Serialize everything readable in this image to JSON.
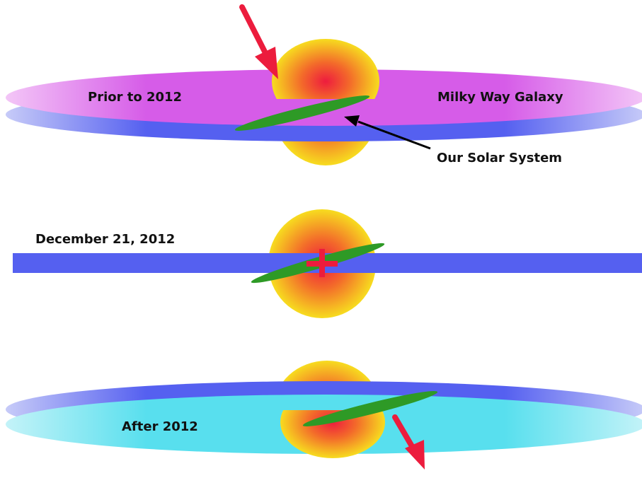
{
  "labels": {
    "prior": "Prior to 2012",
    "galaxy": "Milky Way Galaxy",
    "solar_system": "Our Solar System",
    "alignment_date": "December 21, 2012",
    "after": "After 2012"
  },
  "colors": {
    "galactic_plane_blue": "#5560f0",
    "disc_magenta": "#d65ce8",
    "disc_cyan": "#58dfee",
    "bulge_core_red": "#ee1c3e",
    "bulge_edge_yellow": "#f7dc1f",
    "solar_system_green": "#2e9a26",
    "arrow_red": "#ec1c3d",
    "pointer_black": "#000000"
  }
}
